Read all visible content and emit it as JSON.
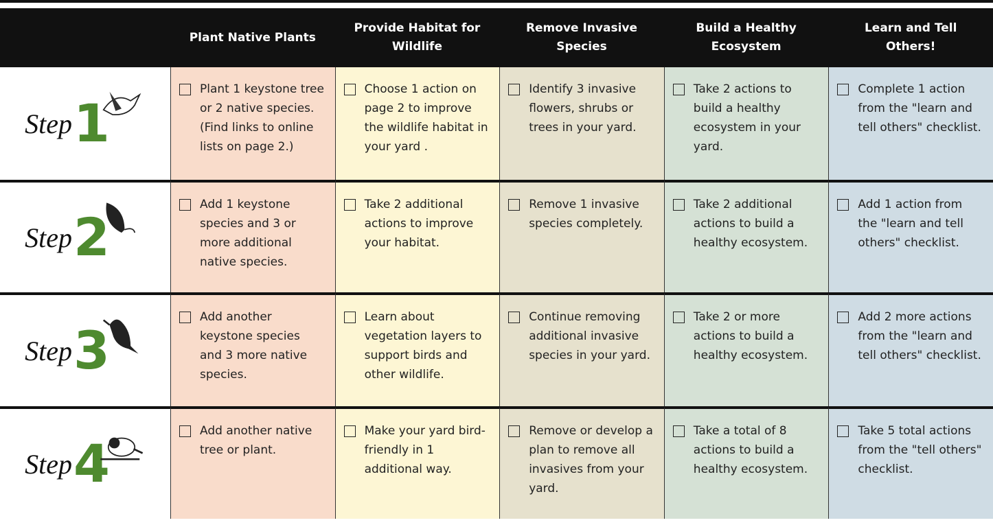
{
  "header": {
    "columns": [
      "Plant Native Plants",
      "Provide Habitat for Wildlife",
      "Remove Invasive Species",
      "Build a Healthy Ecosystem",
      "Learn and Tell Others!"
    ]
  },
  "rows": [
    {
      "step": "Step",
      "number": "1",
      "cells": [
        "Plant 1 keystone tree or 2 native species. (Find links to online lists on page 2.)",
        "Choose 1 action on page 2 to improve the wildlife habitat in your yard .",
        "Identify 3 invasive flowers, shrubs or trees in your yard.",
        "Take 2 actions to build a healthy ecosystem in your yard.",
        "Complete 1 action from the \"learn and tell others\" checklist."
      ]
    },
    {
      "step": "Step",
      "number": "2",
      "cells": [
        "Add 1 keystone species and 3 or more additional native species.",
        "Take 2 additional actions to improve your habitat.",
        "Remove 1 invasive species completely.",
        "Take 2 additional actions to build a healthy ecosystem.",
        "Add 1 action from the \"learn and tell others\" checklist."
      ]
    },
    {
      "step": "Step",
      "number": "3",
      "cells": [
        "Add another keystone species and 3 more native species.",
        "Learn about vegetation layers to support birds and other wildlife.",
        "Continue removing additional invasive species in your yard.",
        "Take 2 or more actions to build a healthy ecosystem.",
        "Add 2 more actions from the \"learn and tell others\" checklist."
      ]
    },
    {
      "step": "Step",
      "number": "4",
      "cells": [
        "Add another native tree or plant.",
        "Make your yard bird-friendly in 1 additional way.",
        "Remove or develop a plan to remove all invasives from your yard.",
        "Take a total of 8 actions to build a healthy ecosystem.",
        "Take 5 total actions from the \"tell others\" checklist."
      ]
    }
  ]
}
